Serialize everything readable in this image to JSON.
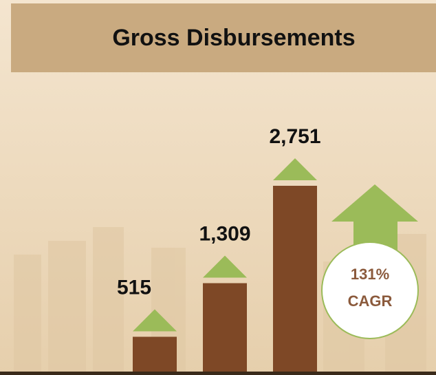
{
  "chart_data": {
    "type": "bar",
    "title": "Gross Disbursements",
    "categories": [
      null,
      null,
      null
    ],
    "values": [
      515,
      1309,
      2751
    ],
    "value_labels": [
      "515",
      "1,309",
      "2,751"
    ],
    "color": "#7e4826",
    "marker_color": "#9bbb59",
    "annotations": [
      "131%",
      "CAGR"
    ]
  }
}
